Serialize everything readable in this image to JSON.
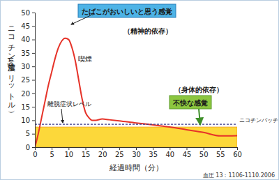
{
  "chart_data": {
    "type": "line",
    "x_label": "経過時間（分）",
    "y_label": "ニコチン濃度（μg/リットル）",
    "source": "血圧 13：1106-1110.2006",
    "annotations": [
      "たばこがおいしいと思う感覚",
      "（精神的依存）",
      "（身体的依存）",
      "不快な感覚"
    ],
    "x": [
      0,
      1,
      2,
      3,
      4,
      5,
      6,
      7,
      8,
      9,
      10,
      11,
      12,
      13,
      14,
      15,
      16,
      17,
      18,
      20,
      22,
      25,
      30,
      35,
      40,
      45,
      50,
      55,
      60
    ],
    "series": [
      {
        "name": "喫煙",
        "type": "line",
        "color": "#e63329",
        "values": [
          0,
          5,
          11,
          17,
          23,
          28,
          33,
          37,
          39.5,
          40.5,
          40,
          37,
          32,
          25,
          18,
          13,
          11,
          10,
          10,
          10.5,
          10.2,
          9.8,
          9,
          8.3,
          7.5,
          6.5,
          5.5,
          4.2,
          4.3
        ]
      },
      {
        "name": "離脱症状レベル",
        "type": "line",
        "line_style": "dashed",
        "color": "#3a3a8c",
        "values": [
          8.5,
          8.5,
          8.5,
          8.5,
          8.5,
          8.5,
          8.5,
          8.5,
          8.5,
          8.5,
          8.5,
          8.5,
          8.5,
          8.5,
          8.5,
          8.5,
          8.5,
          8.5,
          8.5,
          8.5,
          8.5,
          8.5,
          8.5,
          8.5,
          8.5,
          8.5,
          8.5,
          8.5,
          8.5
        ]
      },
      {
        "name": "ニコチンパッチ",
        "type": "area",
        "color": "#fcd83a",
        "values": [
          7.5,
          7.5,
          7.5,
          7.5,
          7.5,
          7.5,
          7.5,
          7.5,
          7.5,
          7.5,
          7.5,
          7.5,
          7.5,
          7.5,
          7.5,
          7.5,
          7.5,
          7.5,
          7.5,
          7.5,
          7.5,
          7.5,
          7.5,
          7.5,
          7.5,
          7.5,
          7.5,
          7.5,
          7.5
        ]
      }
    ],
    "xlim": [
      0,
      60
    ],
    "ylim": [
      0,
      50
    ],
    "xticks": [
      0,
      5,
      10,
      15,
      20,
      25,
      30,
      35,
      40,
      45,
      50,
      55,
      60
    ],
    "yticks": [
      0,
      5,
      10,
      15,
      20,
      25,
      30,
      35,
      40,
      45,
      50
    ]
  }
}
